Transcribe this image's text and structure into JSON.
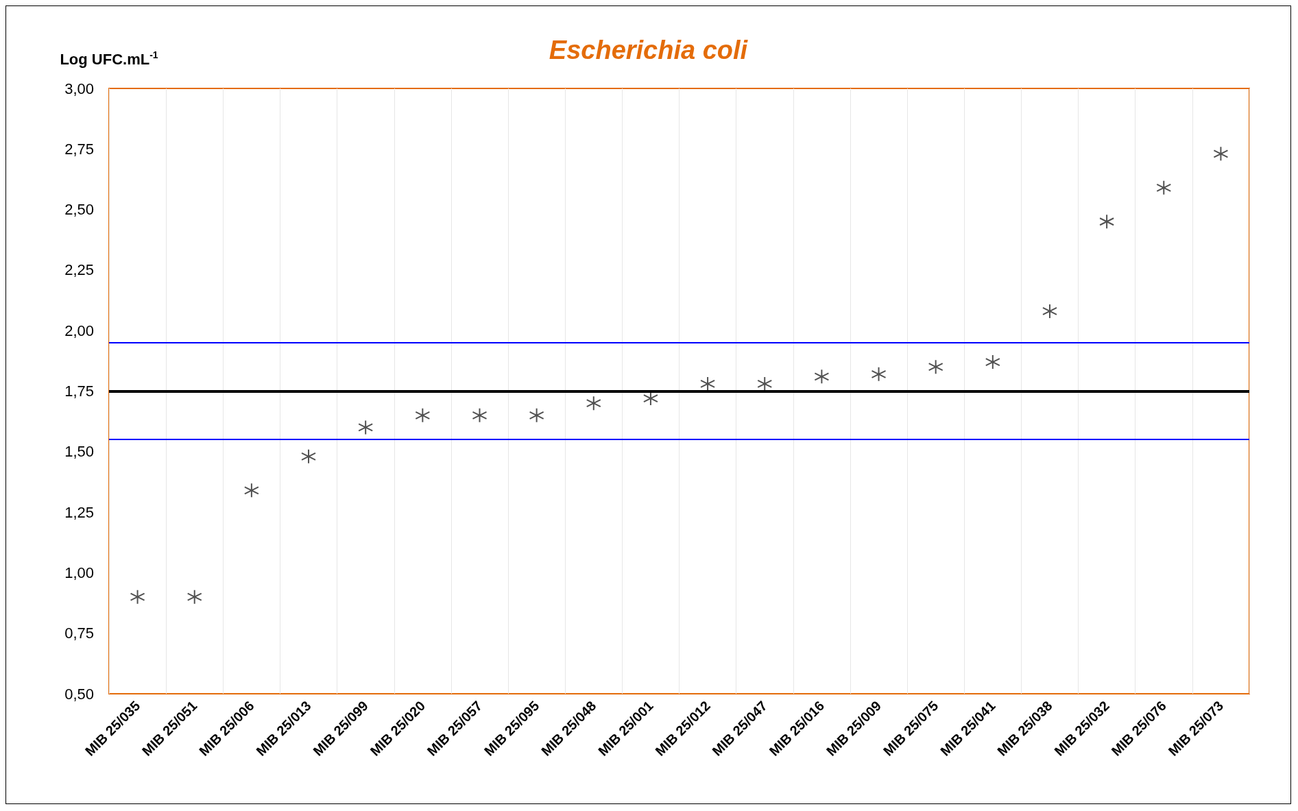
{
  "chart_data": {
    "type": "scatter",
    "title": "Escherichia coli",
    "ylabel": "Log UFC.mL$^{-1}$",
    "categories": [
      "MIB 25/035",
      "MIB 25/051",
      "MIB 25/006",
      "MIB 25/013",
      "MIB 25/099",
      "MIB 25/020",
      "MIB 25/057",
      "MIB 25/095",
      "MIB 25/048",
      "MIB 25/001",
      "MIB 25/012",
      "MIB 25/047",
      "MIB 25/016",
      "MIB 25/009",
      "MIB 25/075",
      "MIB 25/041",
      "MIB 25/038",
      "MIB 25/032",
      "MIB 25/076",
      "MIB 25/073"
    ],
    "series": [
      {
        "color": "#262626",
        "values": [
          0.9,
          0.9,
          1.34,
          1.48,
          1.6,
          1.65,
          1.65,
          1.65,
          1.7,
          1.72,
          1.78,
          1.78,
          1.81,
          1.82,
          1.85,
          1.87,
          2.08,
          2.45,
          2.59,
          2.73
        ]
      }
    ],
    "ylim": [
      0.5,
      3.0
    ],
    "yticks": [
      {
        "value": 0.5,
        "label": "0,50"
      },
      {
        "value": 0.75,
        "label": "0,75"
      },
      {
        "value": 1.0,
        "label": "1,00"
      },
      {
        "value": 1.25,
        "label": "1,25"
      },
      {
        "value": 1.5,
        "label": "1,50"
      },
      {
        "value": 1.75,
        "label": "1,75"
      },
      {
        "value": 2.0,
        "label": "2,00"
      },
      {
        "value": 2.25,
        "label": "2,25"
      },
      {
        "value": 2.5,
        "label": "2,50"
      },
      {
        "value": 2.75,
        "label": "2,75"
      },
      {
        "value": 3.0,
        "label": "3,00"
      }
    ],
    "ref_lines": [
      {
        "axis": "y",
        "value": 1.95,
        "color": "#0000ff"
      },
      {
        "axis": "y",
        "value": 1.75,
        "color": "#000000"
      },
      {
        "axis": "y",
        "value": 1.55,
        "color": "#0000ff"
      }
    ],
    "grid": "x",
    "marker": "cross"
  }
}
